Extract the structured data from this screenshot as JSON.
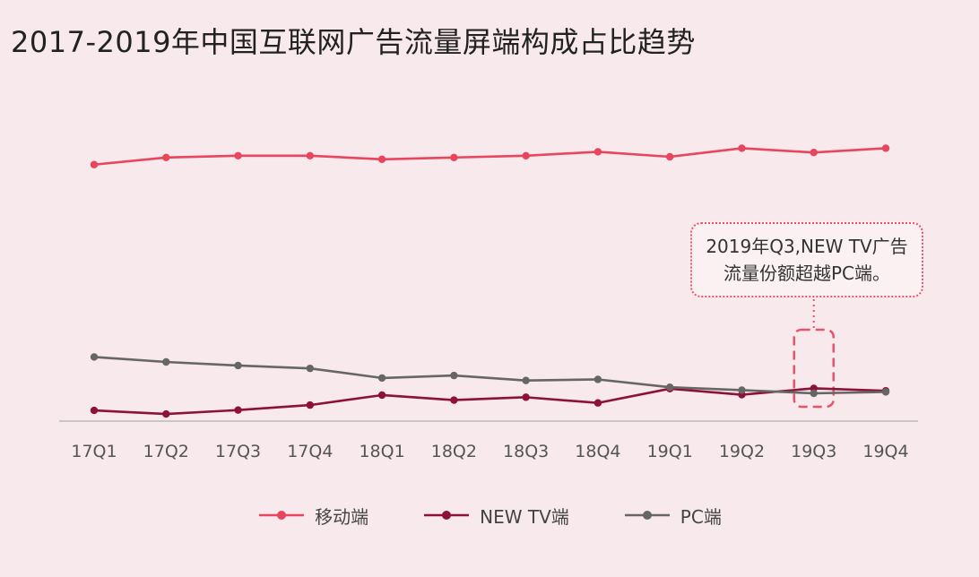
{
  "title": "2017-2019年中国互联网广告流量屏端构成占比趋势",
  "annotation": {
    "line1": "2019年Q3,NEW TV广告",
    "line2": "流量份额超越PC端。"
  },
  "colors": {
    "mobile": "#e8455f",
    "newtv": "#8c1237",
    "pc": "#666666",
    "axis": "#bbbbbb",
    "highlight": "#e5536d"
  },
  "chart_data": {
    "type": "line",
    "title": "2017-2019年中国互联网广告流量屏端构成占比趋势",
    "categories": [
      "17Q1",
      "17Q2",
      "17Q3",
      "17Q4",
      "18Q1",
      "18Q2",
      "18Q3",
      "18Q4",
      "19Q1",
      "19Q2",
      "19Q3",
      "19Q4"
    ],
    "series": [
      {
        "name": "移动端",
        "color": "#e8455f",
        "values": [
          72.0,
          74.0,
          74.5,
          74.5,
          73.5,
          74.0,
          74.5,
          75.6,
          74.2,
          76.6,
          75.4,
          76.6
        ]
      },
      {
        "name": "NEW TV端",
        "color": "#8c1237",
        "values": [
          3.0,
          2.0,
          3.1,
          4.5,
          7.3,
          5.9,
          6.7,
          5.1,
          9.1,
          7.4,
          9.2,
          8.5
        ]
      },
      {
        "name": "PC端",
        "color": "#666666",
        "values": [
          18.0,
          16.6,
          15.6,
          14.8,
          12.1,
          12.8,
          11.4,
          11.7,
          9.5,
          8.7,
          7.8,
          8.2
        ]
      }
    ],
    "ylim": [
      0,
      83
    ],
    "grid": false,
    "legend": "bottom",
    "highlight_category": "19Q3"
  }
}
